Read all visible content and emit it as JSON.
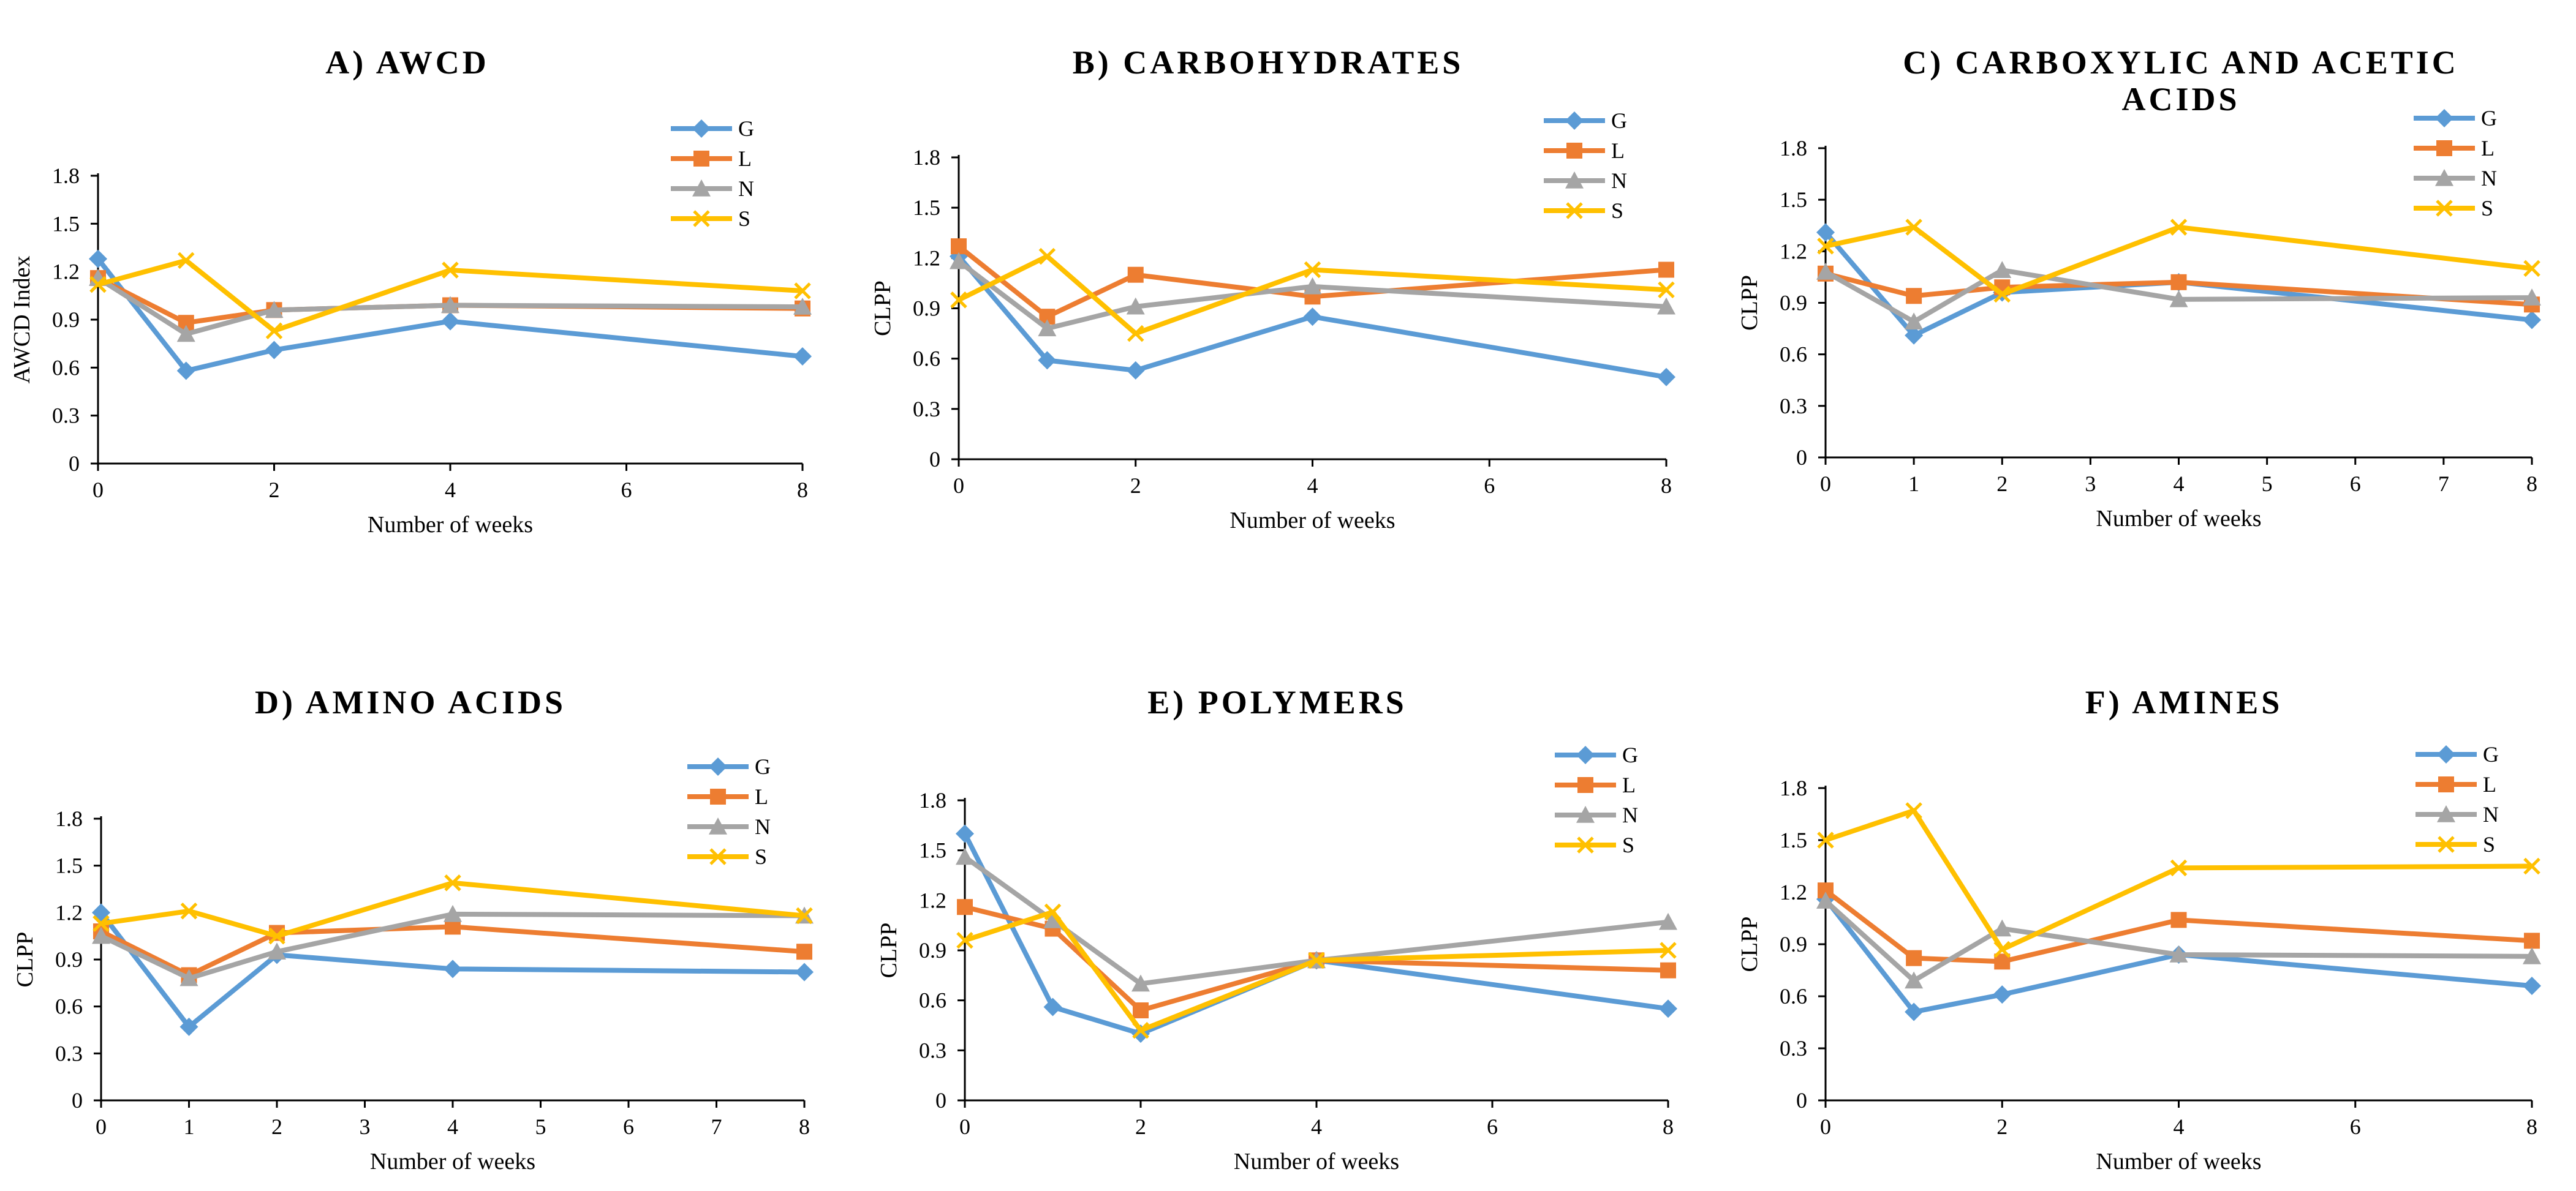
{
  "colors": {
    "G": "#5B9BD5",
    "L": "#ED7D31",
    "N": "#A5A5A5",
    "S": "#FFC000"
  },
  "chart_data": [
    {
      "type": "line",
      "title_lines": [
        "A) AWCD"
      ],
      "xlabel": "Number of weeks",
      "ylabel": "AWCD Index",
      "xlim": [
        0,
        8
      ],
      "xticks": [
        "0",
        "2",
        "4",
        "6",
        "8"
      ],
      "ylim": [
        0,
        1.8
      ],
      "yticks": [
        "0",
        "0.3",
        "0.6",
        "0.9",
        "1.2",
        "1.5",
        "1.8"
      ],
      "x": [
        0,
        1,
        2,
        4,
        8
      ],
      "series": [
        {
          "name": "G",
          "values": [
            1.28,
            0.58,
            0.71,
            0.89,
            0.67
          ]
        },
        {
          "name": "L",
          "values": [
            1.16,
            0.88,
            0.96,
            0.99,
            0.97
          ]
        },
        {
          "name": "N",
          "values": [
            1.16,
            0.81,
            0.96,
            0.99,
            0.98
          ]
        },
        {
          "name": "S",
          "values": [
            1.12,
            1.27,
            0.83,
            1.21,
            1.08
          ]
        }
      ]
    },
    {
      "type": "line",
      "title_lines": [
        "B) CARBOHYDRATES"
      ],
      "xlabel": "Number of weeks",
      "ylabel": "CLPP",
      "xlim": [
        0,
        8
      ],
      "xticks": [
        "0",
        "2",
        "4",
        "6",
        "8"
      ],
      "ylim": [
        0,
        1.8
      ],
      "yticks": [
        "0",
        "0.3",
        "0.6",
        "0.9",
        "1.2",
        "1.5",
        "1.8"
      ],
      "x": [
        0,
        1,
        2,
        4,
        8
      ],
      "series": [
        {
          "name": "G",
          "values": [
            1.21,
            0.59,
            0.53,
            0.85,
            0.49
          ]
        },
        {
          "name": "L",
          "values": [
            1.27,
            0.85,
            1.1,
            0.97,
            1.13
          ]
        },
        {
          "name": "N",
          "values": [
            1.18,
            0.78,
            0.91,
            1.03,
            0.91
          ]
        },
        {
          "name": "S",
          "values": [
            0.95,
            1.21,
            0.75,
            1.13,
            1.01
          ]
        }
      ]
    },
    {
      "type": "line",
      "title_lines": [
        "C) CARBOXYLIC AND ACETIC",
        "ACIDS"
      ],
      "xlabel": "Number of weeks",
      "ylabel": "CLPP",
      "xlim": [
        0,
        8
      ],
      "xticks": [
        "0",
        "1",
        "2",
        "3",
        "4",
        "5",
        "6",
        "7",
        "8"
      ],
      "ylim": [
        0,
        1.8
      ],
      "yticks": [
        "0",
        "0.3",
        "0.6",
        "0.9",
        "1.2",
        "1.5",
        "1.8"
      ],
      "x": [
        0,
        1,
        2,
        4,
        8
      ],
      "series": [
        {
          "name": "G",
          "values": [
            1.31,
            0.71,
            0.96,
            1.02,
            0.8
          ]
        },
        {
          "name": "L",
          "values": [
            1.07,
            0.94,
            0.99,
            1.02,
            0.89
          ]
        },
        {
          "name": "N",
          "values": [
            1.08,
            0.79,
            1.09,
            0.92,
            0.93
          ]
        },
        {
          "name": "S",
          "values": [
            1.23,
            1.34,
            0.95,
            1.34,
            1.1
          ]
        }
      ]
    },
    {
      "type": "line",
      "title_lines": [
        "D) AMINO ACIDS"
      ],
      "xlabel": "Number of weeks",
      "ylabel": "CLPP",
      "xlim": [
        0,
        8
      ],
      "xticks": [
        "0",
        "1",
        "2",
        "3",
        "4",
        "5",
        "6",
        "7",
        "8"
      ],
      "ylim": [
        0,
        1.8
      ],
      "yticks": [
        "0",
        "0.3",
        "0.6",
        "0.9",
        "1.2",
        "1.5",
        "1.8"
      ],
      "x": [
        0,
        1,
        2,
        4,
        8
      ],
      "series": [
        {
          "name": "G",
          "values": [
            1.2,
            0.47,
            0.93,
            0.84,
            0.82
          ]
        },
        {
          "name": "L",
          "values": [
            1.08,
            0.8,
            1.07,
            1.11,
            0.95
          ]
        },
        {
          "name": "N",
          "values": [
            1.05,
            0.78,
            0.95,
            1.19,
            1.18
          ]
        },
        {
          "name": "S",
          "values": [
            1.13,
            1.21,
            1.05,
            1.39,
            1.18
          ]
        }
      ]
    },
    {
      "type": "line",
      "title_lines": [
        "E) POLYMERS"
      ],
      "xlabel": "Number of weeks",
      "ylabel": "CLPP",
      "xlim": [
        0,
        8
      ],
      "xticks": [
        "0",
        "2",
        "4",
        "6",
        "8"
      ],
      "ylim": [
        0,
        1.8
      ],
      "yticks": [
        "0",
        "0.3",
        "0.6",
        "0.9",
        "1.2",
        "1.5",
        "1.8"
      ],
      "x": [
        0,
        1,
        2,
        4,
        8
      ],
      "series": [
        {
          "name": "G",
          "values": [
            1.6,
            0.56,
            0.4,
            0.84,
            0.55
          ]
        },
        {
          "name": "L",
          "values": [
            1.16,
            1.03,
            0.54,
            0.84,
            0.78
          ]
        },
        {
          "name": "N",
          "values": [
            1.46,
            1.08,
            0.7,
            0.84,
            1.07
          ]
        },
        {
          "name": "S",
          "values": [
            0.96,
            1.13,
            0.42,
            0.84,
            0.9
          ]
        }
      ]
    },
    {
      "type": "line",
      "title_lines": [
        "F) AMINES"
      ],
      "xlabel": "Number of weeks",
      "ylabel": "CLPP",
      "xlim": [
        0,
        8
      ],
      "xticks": [
        "0",
        "2",
        "4",
        "6",
        "8"
      ],
      "ylim": [
        0,
        1.8
      ],
      "yticks": [
        "0",
        "0.3",
        "0.6",
        "0.9",
        "1.2",
        "1.5",
        "1.8"
      ],
      "x": [
        0,
        1,
        2,
        4,
        8
      ],
      "series": [
        {
          "name": "G",
          "values": [
            1.16,
            0.51,
            0.61,
            0.84,
            0.66
          ]
        },
        {
          "name": "L",
          "values": [
            1.21,
            0.82,
            0.8,
            1.04,
            0.92
          ]
        },
        {
          "name": "N",
          "values": [
            1.15,
            0.69,
            0.99,
            0.84,
            0.83
          ]
        },
        {
          "name": "S",
          "values": [
            1.5,
            1.67,
            0.87,
            1.34,
            1.35
          ]
        }
      ]
    }
  ]
}
